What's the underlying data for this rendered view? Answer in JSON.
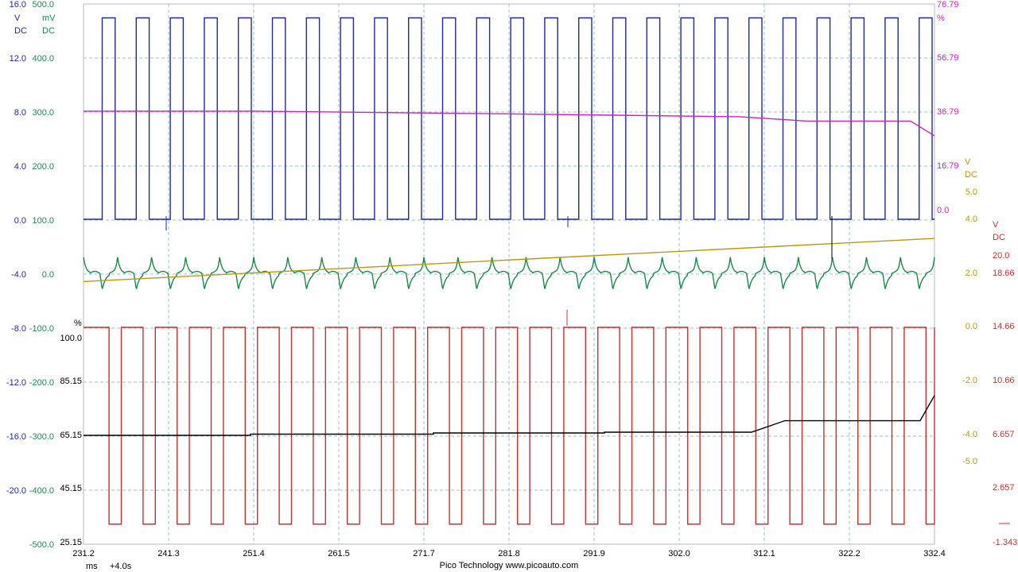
{
  "footer": {
    "unit": "ms",
    "offset": "+4.0s",
    "brand": "Pico Technology  www.picoauto.com"
  },
  "chart_data": {
    "type": "line",
    "grid": true,
    "x_axis": {
      "unit": "ms",
      "range": [
        231.2,
        332.4
      ],
      "ticks": [
        "231.2",
        "241.3",
        "251.4",
        "261.5",
        "271.7",
        "281.8",
        "291.9",
        "302.0",
        "312.1",
        "322.2",
        "332.4"
      ]
    },
    "left_axes": [
      {
        "color": "#1f2a9c",
        "unit": "V",
        "unit2": "DC",
        "range": [
          -24.0,
          16.0
        ],
        "ticks": [
          "16.0",
          "12.0",
          "8.0",
          "4.0",
          "0.0",
          "-4.0",
          "-8.0",
          "-12.0",
          "-16.0",
          "-20.0"
        ]
      },
      {
        "color": "#1a8a4a",
        "unit": "mV",
        "unit2": "DC",
        "range": [
          -500.0,
          500.0
        ],
        "ticks": [
          "500.0",
          "400.0",
          "300.0",
          "200.0",
          "100.0",
          "0.0",
          "-100.0",
          "-200.0",
          "-300.0",
          "-400.0",
          "-500.0"
        ]
      },
      {
        "color": "#000000",
        "unit": "%",
        "ticks": [
          "100.0",
          "85.15",
          "65.15",
          "45.15",
          "25.15"
        ]
      }
    ],
    "right_axes": [
      {
        "color": "#d020c0",
        "unit": "%",
        "ticks": [
          "76.79",
          "56.79",
          "36.79",
          "16.79",
          "0.0"
        ]
      },
      {
        "color": "#b89a10",
        "unit": "V",
        "unit2": "DC",
        "ticks": [
          "5.0",
          "4.0",
          "2.0",
          "0.0",
          "-2.0",
          "-4.0",
          "-5.0"
        ]
      },
      {
        "color": "#c83030",
        "unit": "V",
        "unit2": "DC",
        "ticks": [
          "20.0",
          "18.66",
          "14.66",
          "10.66",
          "6.657",
          "2.657",
          "-1.343"
        ]
      }
    ],
    "series": [
      {
        "color": "#1f2a9c",
        "shape": "square wave",
        "axis": "V",
        "high": 15.0,
        "low": 0.0,
        "cycles": 25
      },
      {
        "color": "#1a8a4a",
        "shape": "pulsed oscillation",
        "axis": "mV",
        "baseline": 0.0,
        "amplitude": 30,
        "cycles": 25
      },
      {
        "color": "#d020c0",
        "shape": "slow decline",
        "axis": "%",
        "start": 37.2,
        "end": 28.0
      },
      {
        "color": "#b89a10",
        "shape": "rising ramp",
        "axis": "V",
        "start": 1.7,
        "end": 3.3
      },
      {
        "color": "#c83030",
        "shape": "square wave",
        "axis": "V",
        "high": 14.66,
        "low": 0.0,
        "cycles": 25
      },
      {
        "color": "#000000",
        "shape": "stepped rise",
        "axis": "%",
        "start": 65.15,
        "end": 80.0
      }
    ]
  }
}
